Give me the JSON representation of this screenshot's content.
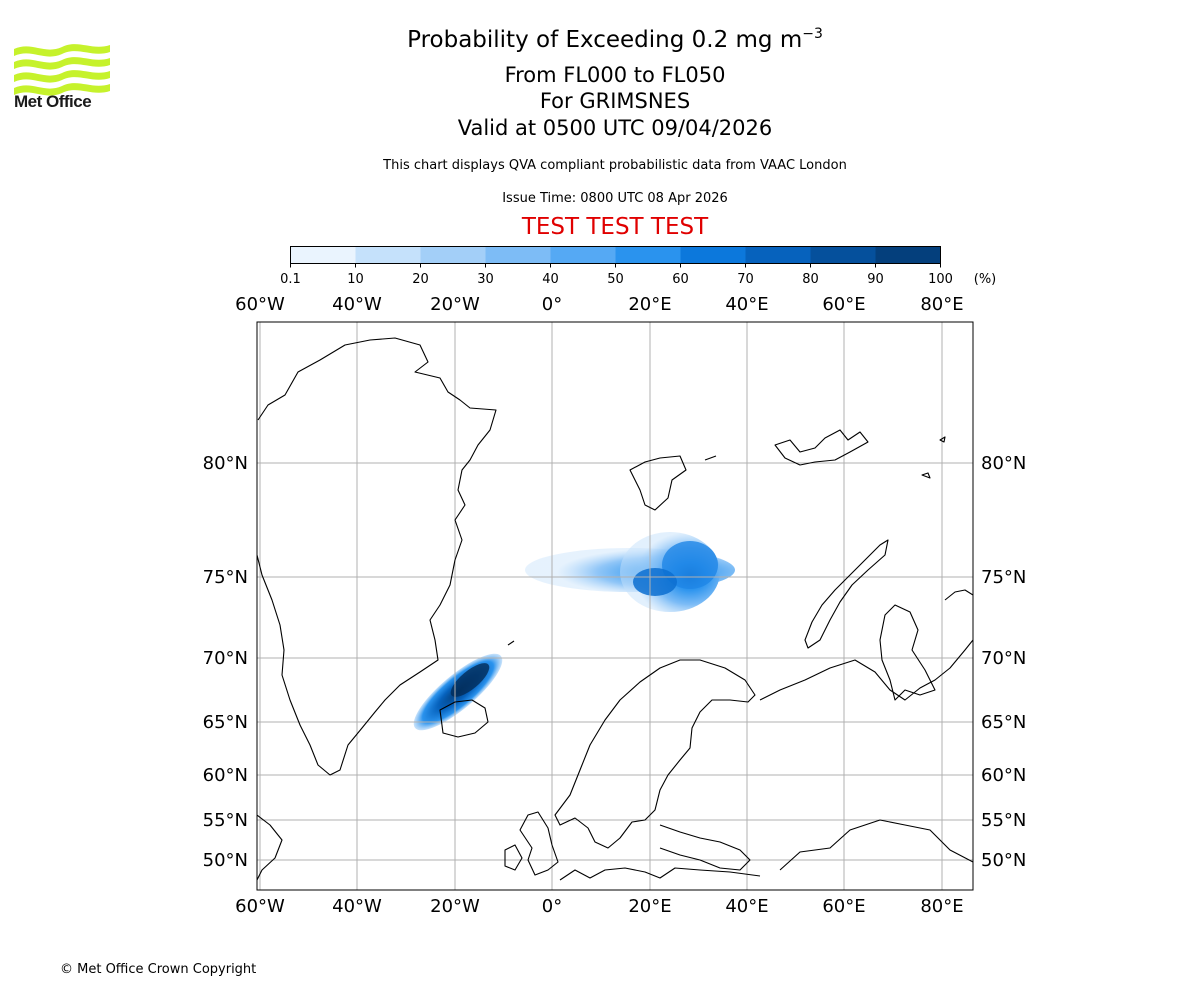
{
  "logo": {
    "text": "Met Office",
    "color": "#c6f22c"
  },
  "header": {
    "title": "Probability of Exceeding 0.2 mg m",
    "title_superscript": "−3",
    "levels": "From FL000 to FL050",
    "volcano": "For GRIMSNES",
    "valid": "Valid at 0500 UTC 09/04/2026",
    "note": "This chart displays QVA compliant probabilistic data from VAAC London",
    "issue": "Issue Time: 0800 UTC 08 Apr 2026",
    "test_banner": "TEST TEST TEST",
    "test_color": "#e00000"
  },
  "colorbar": {
    "ticks": [
      "0.1",
      "10",
      "20",
      "30",
      "40",
      "50",
      "60",
      "70",
      "80",
      "90",
      "100"
    ],
    "unit": "(%)",
    "colors": [
      "#eaf4fe",
      "#c5e1fb",
      "#a3cff8",
      "#7dbcf6",
      "#55a9f4",
      "#2a93ee",
      "#0c78dc",
      "#0662bd",
      "#05509c",
      "#043f7c",
      "#032c57"
    ]
  },
  "map": {
    "lon_labels": [
      "60°W",
      "40°W",
      "20°W",
      "0°",
      "20°E",
      "40°E",
      "60°E",
      "80°E"
    ],
    "lat_labels": [
      "80°N",
      "75°N",
      "70°N",
      "65°N",
      "60°N",
      "55°N",
      "50°N"
    ],
    "plumes": [
      {
        "region": "near Iceland",
        "level": "high"
      },
      {
        "region": "Norwegian Sea / Barents Sea",
        "level": "medium"
      }
    ]
  },
  "footer": {
    "copyright": "© Met Office Crown Copyright"
  }
}
